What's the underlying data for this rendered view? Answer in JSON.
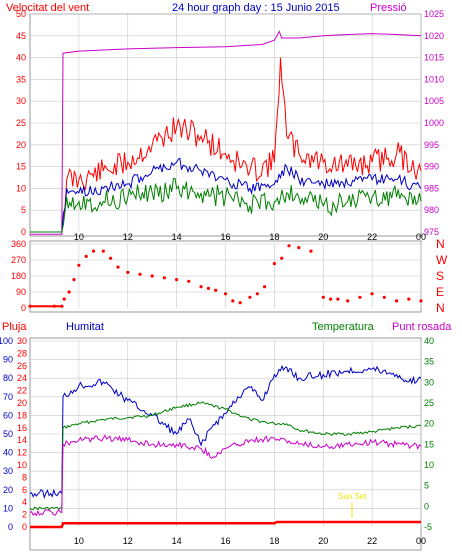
{
  "header": {
    "wind_label": "Velocitat del vent",
    "title": "24 hour graph day : 15 Junio 2015",
    "pressure_label": "Pressió"
  },
  "colors": {
    "red": "#ff0000",
    "blue": "#0000c8",
    "green": "#008000",
    "magenta": "#cc00cc",
    "grid": "#c8c8c8",
    "yellow": "#e8e800"
  },
  "x_ticks": [
    "10",
    "12",
    "14",
    "16",
    "18",
    "20",
    "22",
    "00"
  ],
  "wind_y_ticks": [
    "0",
    "5",
    "10",
    "15",
    "20",
    "25",
    "30",
    "35",
    "40",
    "45",
    "50"
  ],
  "pressure_y_ticks": [
    "975",
    "980",
    "985",
    "990",
    "995",
    "1000",
    "1005",
    "1010",
    "1015",
    "1020",
    "1025"
  ],
  "dir_y_ticks": [
    "0",
    "90",
    "180",
    "270",
    "360"
  ],
  "dir_compass": [
    "N",
    "W",
    "S",
    "E",
    "N"
  ],
  "bottom_header": {
    "rain_label": "Pluja",
    "humidity_label": "Humitat",
    "temp_label": "Temperatura",
    "dew_label": "Punt rosada"
  },
  "hum_y_ticks": [
    "0",
    "10",
    "20",
    "30",
    "40",
    "50",
    "60",
    "70",
    "80",
    "90",
    "100"
  ],
  "rain_y_ticks": [
    "0",
    "2",
    "4",
    "6",
    "8",
    "10",
    "12",
    "14",
    "16",
    "18",
    "20",
    "22",
    "24",
    "26",
    "28",
    "30"
  ],
  "temp_y_ticks": [
    "-5",
    "0",
    "5",
    "10",
    "15",
    "20",
    "25",
    "30",
    "35",
    "40"
  ],
  "sunset_label": "Sun Set",
  "chart_data": [
    {
      "type": "line",
      "title": "24 hour graph day : 15 Junio 2015",
      "x_unit": "hour of day",
      "xlim": [
        8,
        24
      ],
      "x_ticks": [
        10,
        12,
        14,
        16,
        18,
        20,
        22,
        24
      ],
      "left_axis": {
        "label": "Velocitat del vent",
        "ylim": [
          0,
          50
        ]
      },
      "right_axis": {
        "label": "Pressió",
        "ylim": [
          975,
          1025
        ]
      },
      "series": [
        {
          "name": "Pressió",
          "axis": "right",
          "x": [
            8,
            9.3,
            9.35,
            10,
            12,
            14,
            16,
            17.5,
            18,
            18.2,
            18.3,
            19,
            20,
            21,
            22,
            23,
            24
          ],
          "values": [
            974.5,
            974.5,
            1016,
            1016.5,
            1017,
            1017.3,
            1017.5,
            1018,
            1019,
            1021,
            1019.5,
            1019.5,
            1020,
            1020.3,
            1020.5,
            1020.3,
            1020
          ]
        },
        {
          "name": "",
          "axis": "left",
          "x": [
            8,
            9.3,
            9.5,
            10,
            11,
            12,
            13,
            14,
            15,
            16,
            17,
            18,
            18.25,
            18.5,
            19,
            20,
            21,
            22,
            23,
            24
          ],
          "values": [
            0,
            0,
            12,
            12,
            14,
            16,
            20,
            24,
            22,
            18,
            14,
            16,
            40,
            22,
            18,
            16,
            15,
            16,
            18,
            14
          ]
        },
        {
          "name": "",
          "axis": "left",
          "x": [
            8,
            9.3,
            9.5,
            10,
            11,
            12,
            13,
            14,
            15,
            16,
            17,
            18,
            18.5,
            19,
            20,
            21,
            22,
            23,
            24
          ],
          "values": [
            0,
            0,
            10,
            9,
            10,
            11,
            14,
            16,
            14,
            12,
            10,
            11,
            15,
            12,
            11,
            11,
            12,
            12,
            10
          ]
        },
        {
          "name": "",
          "axis": "left",
          "x": [
            8,
            9.3,
            9.5,
            10,
            11,
            12,
            13,
            14,
            15,
            16,
            17,
            18,
            18.5,
            19,
            20,
            21,
            22,
            23,
            24
          ],
          "values": [
            0,
            0,
            8,
            7,
            7,
            8,
            9,
            10,
            9,
            8,
            6,
            7,
            9,
            8,
            6,
            7,
            8,
            8,
            7
          ]
        }
      ]
    },
    {
      "type": "scatter",
      "x_unit": "hour of day",
      "xlim": [
        8,
        24
      ],
      "ylim": [
        0,
        360
      ],
      "series": [
        {
          "name": "",
          "x": [
            8,
            9,
            9.3,
            9.4,
            9.6,
            9.8,
            10,
            10.3,
            10.6,
            11,
            11.3,
            11.6,
            12,
            12.5,
            13,
            13.5,
            14,
            14.5,
            15,
            15.3,
            15.6,
            16,
            16.3,
            16.6,
            17,
            17.3,
            17.6,
            18,
            18.3,
            18.6,
            19,
            19.5,
            20,
            20.3,
            20.6,
            21,
            21.5,
            22,
            22.5,
            23,
            23.5,
            24
          ],
          "values": [
            10,
            10,
            10,
            50,
            90,
            160,
            240,
            290,
            320,
            320,
            280,
            230,
            200,
            190,
            180,
            170,
            160,
            150,
            120,
            110,
            100,
            80,
            40,
            30,
            60,
            80,
            120,
            250,
            280,
            350,
            340,
            320,
            60,
            50,
            50,
            40,
            60,
            80,
            60,
            40,
            50,
            40
          ]
        }
      ]
    },
    {
      "type": "line",
      "x_unit": "hour of day",
      "xlim": [
        8,
        24
      ],
      "left_axes": [
        {
          "label": "Humitat",
          "ylim": [
            0,
            100
          ]
        },
        {
          "label": "Pluja",
          "ylim": [
            0,
            30
          ]
        }
      ],
      "right_axis": {
        "label": "Temperatura",
        "ylim": [
          -5,
          40
        ]
      },
      "annotation": "Sun Set",
      "series": [
        {
          "name": "Humitat",
          "axis": "left-humidity",
          "x": [
            8,
            9.3,
            9.35,
            10,
            11,
            12,
            13,
            14,
            14.5,
            15,
            15.5,
            16,
            16.5,
            17,
            17.5,
            18,
            18.5,
            19,
            20,
            21,
            22,
            23,
            23.5,
            24
          ],
          "values": [
            18,
            18,
            70,
            76,
            78,
            68,
            60,
            50,
            58,
            44,
            55,
            61,
            70,
            75,
            68,
            82,
            86,
            80,
            82,
            84,
            85,
            82,
            78,
            80
          ]
        },
        {
          "name": "Temperatura",
          "axis": "right",
          "x": [
            8,
            9.3,
            9.35,
            10,
            11,
            12,
            13,
            14,
            15,
            16,
            17,
            18,
            18.5,
            19,
            20,
            21,
            22,
            23,
            24
          ],
          "values": [
            -0.5,
            -0.5,
            19,
            20,
            21,
            21.5,
            22,
            24,
            25,
            23.5,
            21,
            20,
            20,
            18.5,
            17.5,
            17.5,
            18,
            19,
            19.5
          ]
        },
        {
          "name": "Punt rosada",
          "axis": "right",
          "x": [
            8,
            9.3,
            9.35,
            10,
            11,
            12,
            13,
            14,
            15,
            15.5,
            16,
            16.5,
            17,
            18,
            19,
            20,
            21,
            22,
            23,
            24
          ],
          "values": [
            -1.5,
            -1.5,
            15,
            16,
            16.5,
            16,
            15,
            15,
            14,
            12,
            14,
            15,
            16,
            16.5,
            15,
            14.5,
            15,
            15.5,
            15,
            14.5
          ]
        },
        {
          "name": "Pluja",
          "axis": "left-rain",
          "x": [
            8,
            9.3,
            9.35,
            18,
            18.1,
            24
          ],
          "values": [
            0,
            0,
            0.6,
            0.6,
            0.8,
            0.8
          ]
        }
      ]
    }
  ]
}
